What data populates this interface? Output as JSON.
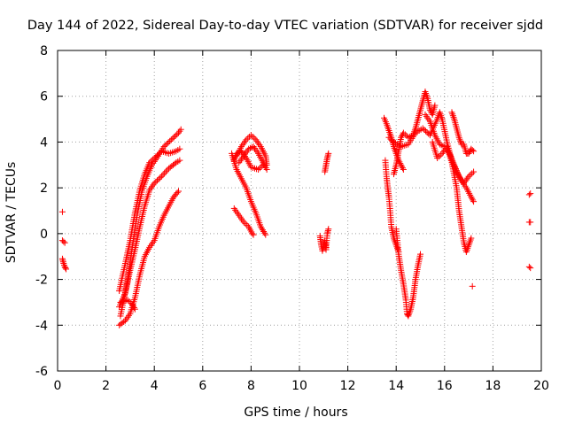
{
  "chart_data": {
    "type": "scatter",
    "title": "Day 144 of 2022, Sidereal Day-to-day VTEC variation (SDTVAR) for receiver sjdd",
    "xlabel": "GPS time / hours",
    "ylabel": "SDTVAR / TECUs",
    "xlim": [
      0,
      20
    ],
    "ylim": [
      -6,
      8
    ],
    "xticks": [
      "0",
      "2",
      "4",
      "6",
      "8",
      "10",
      "12",
      "14",
      "16",
      "18",
      "20"
    ],
    "yticks": [
      "-6",
      "-4",
      "-2",
      "0",
      "2",
      "4",
      "6",
      "8"
    ],
    "grid": true,
    "marker": "+",
    "color": "#ff0000",
    "segments": [
      [
        [
          0.2,
          0.95
        ]
      ],
      [
        [
          0.2,
          -0.3
        ],
        [
          0.3,
          -0.4
        ]
      ],
      [
        [
          0.2,
          -1.1
        ],
        [
          0.25,
          -1.3
        ],
        [
          0.3,
          -1.45
        ],
        [
          0.35,
          -1.55
        ]
      ],
      [
        [
          2.55,
          -4.0
        ],
        [
          2.8,
          -3.8
        ],
        [
          3.0,
          -3.5
        ],
        [
          3.2,
          -2.8
        ],
        [
          3.4,
          -1.8
        ],
        [
          3.6,
          -1.0
        ],
        [
          3.8,
          -0.6
        ],
        [
          4.0,
          -0.3
        ],
        [
          4.2,
          0.3
        ],
        [
          4.4,
          0.8
        ],
        [
          4.6,
          1.2
        ],
        [
          4.8,
          1.6
        ],
        [
          5.0,
          1.85
        ]
      ],
      [
        [
          2.55,
          -3.2
        ],
        [
          2.8,
          -2.6
        ],
        [
          3.0,
          -1.6
        ],
        [
          3.2,
          -0.7
        ],
        [
          3.4,
          0.3
        ],
        [
          3.6,
          1.2
        ],
        [
          3.8,
          1.9
        ],
        [
          4.0,
          2.2
        ],
        [
          4.3,
          2.5
        ],
        [
          4.6,
          2.85
        ],
        [
          4.9,
          3.1
        ],
        [
          5.05,
          3.2
        ]
      ],
      [
        [
          2.55,
          -2.5
        ],
        [
          2.8,
          -1.3
        ],
        [
          3.0,
          -0.3
        ],
        [
          3.2,
          0.9
        ],
        [
          3.4,
          1.9
        ],
        [
          3.6,
          2.6
        ],
        [
          3.8,
          3.1
        ],
        [
          4.0,
          3.3
        ],
        [
          4.3,
          3.6
        ],
        [
          4.6,
          3.5
        ],
        [
          4.9,
          3.6
        ],
        [
          5.05,
          3.7
        ]
      ],
      [
        [
          2.6,
          -3.6
        ],
        [
          2.9,
          -2.0
        ],
        [
          3.1,
          -0.5
        ],
        [
          3.3,
          0.9
        ],
        [
          3.5,
          1.9
        ],
        [
          3.7,
          2.5
        ],
        [
          3.9,
          3.0
        ],
        [
          4.1,
          3.3
        ],
        [
          4.4,
          3.8
        ],
        [
          4.7,
          4.1
        ],
        [
          5.0,
          4.4
        ],
        [
          5.1,
          4.55
        ]
      ],
      [
        [
          2.6,
          -3.0
        ],
        [
          2.9,
          -2.9
        ],
        [
          3.1,
          -3.1
        ],
        [
          3.2,
          -3.3
        ]
      ],
      [
        [
          7.2,
          3.5
        ],
        [
          7.4,
          2.8
        ],
        [
          7.6,
          2.4
        ],
        [
          7.8,
          2.0
        ],
        [
          8.0,
          1.4
        ],
        [
          8.2,
          0.9
        ],
        [
          8.4,
          0.3
        ],
        [
          8.6,
          -0.05
        ]
      ],
      [
        [
          7.4,
          3.4
        ],
        [
          7.6,
          3.8
        ],
        [
          7.8,
          4.1
        ],
        [
          8.0,
          4.3
        ],
        [
          8.2,
          4.1
        ],
        [
          8.4,
          3.8
        ],
        [
          8.6,
          3.4
        ],
        [
          8.65,
          3.0
        ]
      ],
      [
        [
          7.5,
          3.1
        ],
        [
          7.7,
          3.4
        ],
        [
          7.9,
          3.7
        ],
        [
          8.1,
          3.8
        ],
        [
          8.3,
          3.5
        ],
        [
          8.5,
          3.1
        ],
        [
          8.65,
          2.8
        ]
      ],
      [
        [
          7.3,
          3.2
        ],
        [
          7.4,
          3.5
        ],
        [
          7.6,
          3.6
        ],
        [
          7.8,
          3.3
        ],
        [
          8.0,
          2.9
        ],
        [
          8.3,
          2.8
        ],
        [
          8.5,
          3.0
        ]
      ],
      [
        [
          7.3,
          1.1
        ],
        [
          7.5,
          0.8
        ],
        [
          7.7,
          0.5
        ],
        [
          7.9,
          0.3
        ],
        [
          8.05,
          0.0
        ],
        [
          8.1,
          -0.05
        ]
      ],
      [
        [
          10.85,
          -0.1
        ],
        [
          10.9,
          -0.5
        ],
        [
          10.95,
          -0.75
        ],
        [
          11.05,
          -0.3
        ],
        [
          11.1,
          -0.7
        ],
        [
          11.15,
          0.0
        ],
        [
          11.2,
          0.2
        ]
      ],
      [
        [
          11.05,
          2.7
        ],
        [
          11.1,
          3.0
        ],
        [
          11.15,
          3.3
        ],
        [
          11.2,
          3.5
        ]
      ],
      [
        [
          13.5,
          5.05
        ],
        [
          13.6,
          4.8
        ],
        [
          13.7,
          4.5
        ],
        [
          13.8,
          4.2
        ],
        [
          13.9,
          3.8
        ],
        [
          14.0,
          3.5
        ],
        [
          14.1,
          3.2
        ],
        [
          14.2,
          3.0
        ],
        [
          14.3,
          2.8
        ]
      ],
      [
        [
          13.55,
          3.2
        ],
        [
          13.6,
          2.5
        ],
        [
          13.65,
          2.0
        ],
        [
          13.7,
          1.6
        ],
        [
          13.75,
          1.0
        ],
        [
          13.8,
          0.3
        ],
        [
          13.9,
          -0.2
        ],
        [
          14.0,
          -0.5
        ],
        [
          14.1,
          -0.8
        ]
      ],
      [
        [
          14.0,
          0.2
        ],
        [
          14.1,
          -0.9
        ],
        [
          14.2,
          -1.6
        ],
        [
          14.3,
          -2.2
        ],
        [
          14.4,
          -2.9
        ],
        [
          14.45,
          -3.5
        ],
        [
          14.5,
          -3.6
        ],
        [
          14.6,
          -3.3
        ],
        [
          14.7,
          -2.8
        ],
        [
          14.8,
          -2.0
        ],
        [
          14.9,
          -1.4
        ],
        [
          15.0,
          -0.9
        ]
      ],
      [
        [
          13.9,
          2.6
        ],
        [
          14.0,
          3.0
        ],
        [
          14.1,
          3.6
        ],
        [
          14.2,
          4.2
        ],
        [
          14.3,
          4.4
        ],
        [
          14.5,
          4.2
        ],
        [
          14.7,
          4.3
        ],
        [
          14.8,
          4.6
        ],
        [
          14.9,
          5.0
        ],
        [
          15.0,
          5.4
        ],
        [
          15.1,
          5.8
        ],
        [
          15.2,
          6.2
        ],
        [
          15.3,
          5.9
        ],
        [
          15.4,
          5.4
        ],
        [
          15.5,
          5.2
        ],
        [
          15.6,
          5.6
        ]
      ],
      [
        [
          13.7,
          4.2
        ],
        [
          13.9,
          4.0
        ],
        [
          14.2,
          3.8
        ],
        [
          14.5,
          3.9
        ],
        [
          14.8,
          4.4
        ],
        [
          15.1,
          4.6
        ],
        [
          15.4,
          4.3
        ],
        [
          15.7,
          5.0
        ],
        [
          15.8,
          5.3
        ],
        [
          15.9,
          5.0
        ],
        [
          16.1,
          4.0
        ],
        [
          16.3,
          3.2
        ],
        [
          16.5,
          2.7
        ],
        [
          16.7,
          2.3
        ],
        [
          16.9,
          2.0
        ],
        [
          17.1,
          1.6
        ],
        [
          17.2,
          1.4
        ]
      ],
      [
        [
          15.2,
          5.2
        ],
        [
          15.4,
          4.9
        ],
        [
          15.6,
          4.3
        ],
        [
          15.8,
          3.9
        ],
        [
          16.0,
          3.8
        ],
        [
          16.2,
          3.5
        ],
        [
          16.4,
          3.0
        ],
        [
          16.6,
          2.5
        ],
        [
          16.8,
          2.2
        ],
        [
          17.0,
          2.5
        ],
        [
          17.2,
          2.7
        ]
      ],
      [
        [
          15.5,
          4.0
        ],
        [
          15.7,
          3.3
        ],
        [
          15.9,
          3.5
        ],
        [
          16.1,
          3.8
        ],
        [
          16.3,
          3.1
        ],
        [
          16.5,
          2.0
        ],
        [
          16.6,
          1.0
        ],
        [
          16.7,
          0.3
        ],
        [
          16.8,
          -0.4
        ],
        [
          16.9,
          -0.8
        ],
        [
          17.0,
          -0.5
        ],
        [
          17.1,
          -0.2
        ]
      ],
      [
        [
          16.3,
          5.3
        ],
        [
          16.4,
          5.0
        ],
        [
          16.5,
          4.6
        ],
        [
          16.6,
          4.2
        ],
        [
          16.7,
          3.9
        ],
        [
          16.8,
          3.9
        ],
        [
          16.9,
          3.5
        ],
        [
          17.0,
          3.5
        ],
        [
          17.1,
          3.7
        ],
        [
          17.2,
          3.6
        ]
      ],
      [
        [
          17.15,
          -2.3
        ]
      ],
      [
        [
          19.5,
          1.7
        ],
        [
          19.55,
          1.75
        ]
      ],
      [
        [
          19.5,
          0.5
        ],
        [
          19.55,
          0.5
        ]
      ],
      [
        [
          19.5,
          -1.45
        ],
        [
          19.55,
          -1.5
        ]
      ]
    ]
  }
}
